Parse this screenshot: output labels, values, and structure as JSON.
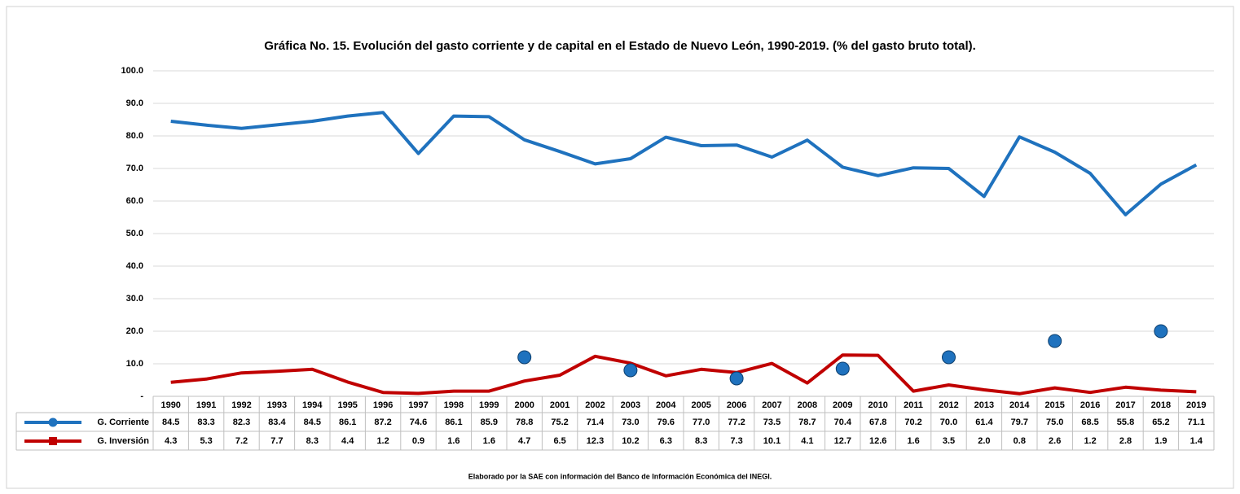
{
  "chart_data": {
    "type": "line",
    "title": "Gráfica No. 15. Evolución del gasto corriente y de capital en el Estado de Nuevo León, 1990-2019. (% del gasto bruto total).",
    "categories": [
      "1990",
      "1991",
      "1992",
      "1993",
      "1994",
      "1995",
      "1996",
      "1997",
      "1998",
      "1999",
      "2000",
      "2001",
      "2002",
      "2003",
      "2004",
      "2005",
      "2006",
      "2007",
      "2008",
      "2009",
      "2010",
      "2011",
      "2012",
      "2013",
      "2014",
      "2015",
      "2016",
      "2017",
      "2018",
      "2019"
    ],
    "series": [
      {
        "name": "G. Corriente",
        "color": "#1f72be",
        "marker": "circle",
        "values": [
          84.5,
          83.3,
          82.3,
          83.4,
          84.5,
          86.1,
          87.2,
          74.6,
          86.1,
          85.9,
          78.8,
          75.2,
          71.4,
          73.0,
          79.6,
          77.0,
          77.2,
          73.5,
          78.7,
          70.4,
          67.8,
          70.2,
          70.0,
          61.4,
          79.7,
          75.0,
          68.5,
          55.8,
          65.2,
          71.1
        ],
        "value_labels": [
          "84.5",
          "83.3",
          "82.3",
          "83.4",
          "84.5",
          "86.1",
          "87.2",
          "74.6",
          "86.1",
          "85.9",
          "78.8",
          "75.2",
          "71.4",
          "73.0",
          "79.6",
          "77.0",
          "77.2",
          "73.5",
          "78.7",
          "70.4",
          "67.8",
          "70.2",
          "70.0",
          "61.4",
          "79.7",
          "75.0",
          "68.5",
          "55.8",
          "65.2",
          "71.1"
        ]
      },
      {
        "name": "G. Inversión",
        "color": "#c00000",
        "marker": "square",
        "values": [
          4.3,
          5.3,
          7.2,
          7.7,
          8.3,
          4.4,
          1.2,
          0.9,
          1.6,
          1.6,
          4.7,
          6.5,
          12.3,
          10.2,
          6.3,
          8.3,
          7.3,
          10.1,
          4.1,
          12.7,
          12.6,
          1.6,
          3.5,
          2.0,
          0.8,
          2.6,
          1.2,
          2.8,
          1.9,
          1.4
        ],
        "value_labels": [
          "4.3",
          "5.3",
          "7.2",
          "7.7",
          "8.3",
          "4.4",
          "1.2",
          "0.9",
          "1.6",
          "1.6",
          "4.7",
          "6.5",
          "12.3",
          "10.2",
          "6.3",
          "8.3",
          "7.3",
          "10.1",
          "4.1",
          "12.7",
          "12.6",
          "1.6",
          "3.5",
          "2.0",
          "0.8",
          "2.6",
          "1.2",
          "2.8",
          "1.9",
          "1.4"
        ]
      }
    ],
    "points": {
      "color": "#1f72be",
      "values": [
        null,
        null,
        null,
        null,
        null,
        null,
        null,
        null,
        null,
        null,
        12,
        null,
        null,
        8,
        null,
        null,
        5.5,
        null,
        null,
        8.5,
        null,
        null,
        12,
        null,
        null,
        17,
        null,
        null,
        20,
        null
      ]
    },
    "ylim": [
      0,
      100
    ],
    "yticks": [
      {
        "value": 0,
        "label": "-"
      },
      {
        "value": 10,
        "label": "10.0"
      },
      {
        "value": 20,
        "label": "20.0"
      },
      {
        "value": 30,
        "label": "30.0"
      },
      {
        "value": 40,
        "label": "40.0"
      },
      {
        "value": 50,
        "label": "50.0"
      },
      {
        "value": 60,
        "label": "60.0"
      },
      {
        "value": 70,
        "label": "70.0"
      },
      {
        "value": 80,
        "label": "80.0"
      },
      {
        "value": 90,
        "label": "90.0"
      },
      {
        "value": 100,
        "label": "100.0"
      }
    ],
    "grid": true,
    "note": "Elaborado por la SAE con información del Banco de Información Económica del INEGI."
  }
}
